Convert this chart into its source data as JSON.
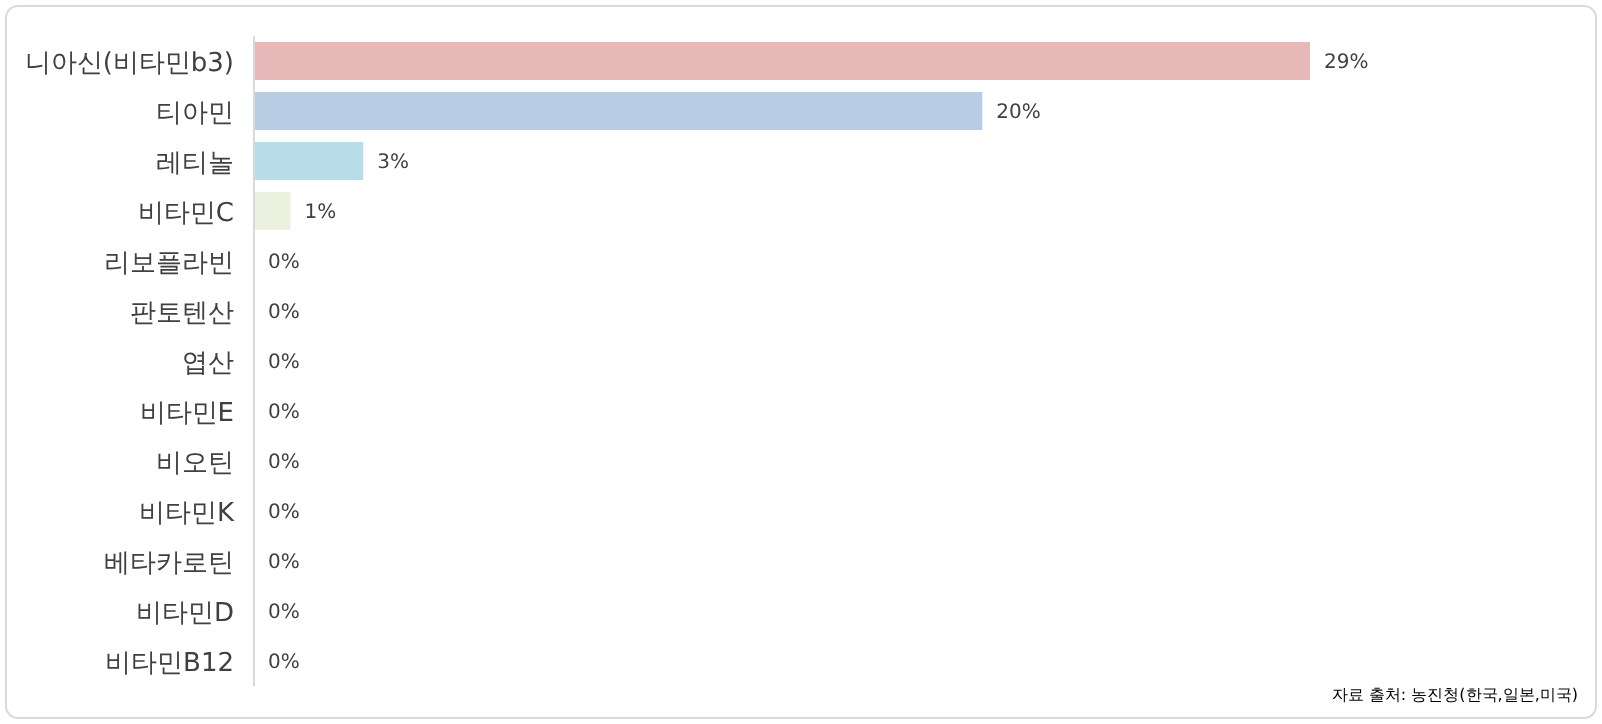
{
  "chart_data": {
    "type": "bar",
    "orientation": "horizontal",
    "categories": [
      "니아신(비타민b3)",
      "티아민",
      "레티놀",
      "비타민C",
      "리보플라빈",
      "판토텐산",
      "엽산",
      "비타민E",
      "비오틴",
      "비타민K",
      "베타카로틴",
      "비타민D",
      "비타민B12"
    ],
    "values": [
      29,
      20,
      3,
      1,
      0,
      0,
      0,
      0,
      0,
      0,
      0,
      0,
      0
    ],
    "value_labels": [
      "29%",
      "20%",
      "3%",
      "1%",
      "0%",
      "0%",
      "0%",
      "0%",
      "0%",
      "0%",
      "0%",
      "0%",
      "0%"
    ],
    "colors": [
      "#e6b8b7",
      "#b8cce4",
      "#b7dee8",
      "#ebf1de",
      "#f2dcdb",
      "#dce6f1",
      "#daeef3",
      "#ebf1de",
      "#f2dcdb",
      "#dce6f1",
      "#daeef3",
      "#ebf1de",
      "#f2dcdb"
    ],
    "annotations": [
      "자료 출처: 농진청(한국,일본,미국)"
    ]
  }
}
